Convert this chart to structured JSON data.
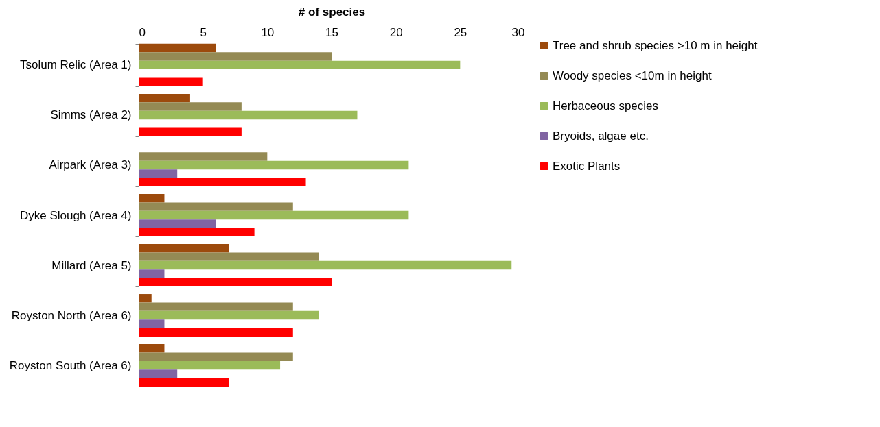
{
  "chart_data": {
    "type": "bar",
    "orientation": "horizontal",
    "xlabel": "# of species",
    "categories": [
      "Tsolum Relic (Area 1)",
      "Simms (Area 2)",
      "Airpark (Area 3)",
      "Dyke Slough (Area 4)",
      "Millard (Area 5)",
      "Royston North (Area 6)",
      "Royston South  (Area 6)"
    ],
    "series": [
      {
        "name": "Tree and shrub species >10 m in height",
        "color": "#9c4a0c",
        "values": [
          6,
          4,
          null,
          2,
          7,
          1,
          2
        ]
      },
      {
        "name": "Woody species <10m in height",
        "color": "#948a54",
        "values": [
          15,
          8,
          10,
          12,
          14,
          12,
          12
        ]
      },
      {
        "name": "Herbaceous species",
        "color": "#9bbb59",
        "values": [
          25,
          17,
          21,
          21,
          29,
          14,
          11
        ]
      },
      {
        "name": "Bryoids, algae etc.",
        "color": "#8064a2",
        "values": [
          null,
          null,
          3,
          6,
          2,
          2,
          3
        ]
      },
      {
        "name": "Exotic Plants",
        "color": "#ff0000",
        "values": [
          5,
          8,
          13,
          9,
          15,
          12,
          7
        ]
      }
    ],
    "xlim": [
      0,
      30
    ],
    "xticks": [
      0,
      5,
      10,
      15,
      20,
      25,
      30
    ],
    "grid": false,
    "legend": "top right"
  }
}
